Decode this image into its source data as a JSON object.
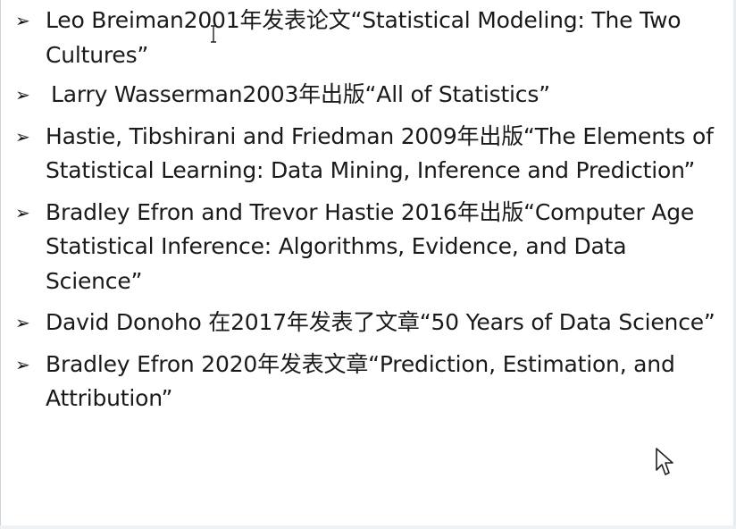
{
  "references": [
    {
      "bullet": "➢",
      "text": "Leo Breiman2001年发表论文“Statistical Modeling: The Two Cultures”"
    },
    {
      "bullet": "➢",
      "text": "Larry Wasserman2003年出版“All of Statistics”"
    },
    {
      "bullet": "➢",
      "text": "Hastie, Tibshirani and Friedman 2009年出版“The Elements of Statistical Learning: Data Mining, Inference and Prediction”"
    },
    {
      "bullet": "➢",
      "text": "Bradley Efron and Trevor Hastie 2016年出版“Computer Age Statistical Inference: Algorithms, Evidence, and Data Science”"
    },
    {
      "bullet": "➢",
      "text": "David Donoho 在2017年发表了文章“50 Years of Data Science”"
    },
    {
      "bullet": "➢",
      "text": "Bradley Efron 2020年发表文章“Prediction, Estimation, and Attribution”"
    }
  ],
  "icons": {
    "mouse_cursor": "arrow-pointer-icon",
    "text_cursor": "i-beam-icon"
  },
  "colors": {
    "text": "#1a1a1a",
    "background": "#ffffff",
    "frame": "#c8d2da"
  }
}
